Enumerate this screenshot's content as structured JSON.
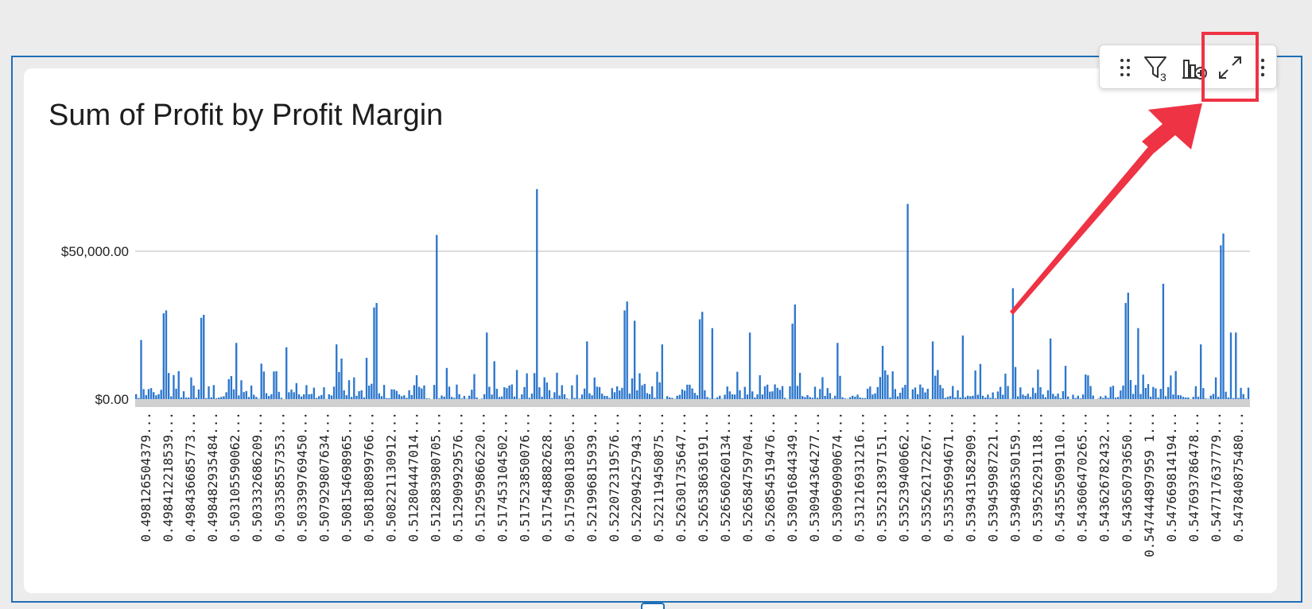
{
  "chart_data": {
    "type": "bar",
    "title": "Sum of Profit by Profit Margin",
    "xlabel": "",
    "ylabel": "",
    "y_ticks": [
      "$0.00",
      "$50,000.00"
    ],
    "ylim": [
      0,
      80000
    ],
    "grid": true,
    "bar_color": "#2d77cc",
    "x_tick_labels": [
      "0.498126504379...",
      "0.498412218539...",
      "0.498436685773...",
      "0.498482935484...",
      "0.503105590062...",
      "0.503332686209...",
      "0.503358557353...",
      "0.503399769450...",
      "0.507929807634...",
      "0.508154698965...",
      "0.508180899766...",
      "0.508221130912...",
      "0.512804447014...",
      "0.512883980705...",
      "0.512909929576...",
      "0.512959866220...",
      "0.517453104502...",
      "0.517523850076...",
      "0.517548882628...",
      "0.517598018305...",
      "0.521996815939...",
      "0.522072319576...",
      "0.522094257943...",
      "0.522119450875...",
      "0.526301735647...",
      "0.526538636191...",
      "0.526560260134...",
      "0.526584759704...",
      "0.526854519476...",
      "0.530916844349...",
      "0.530944364277...",
      "0.530969090674...",
      "0.531216931216...",
      "0.535218397151...",
      "0.535239400662...",
      "0.535262172267...",
      "0.535356994671...",
      "0.539431582909...",
      "0.539459987221...",
      "0.539486350159...",
      "0.539526291118...",
      "0.543555099110...",
      "0.543606470265...",
      "0.543626782432...",
      "0.543650793650...",
      "0.547444897959 1...",
      "0.547669814194...",
      "0.547693786478...",
      "0.547717637779...",
      "0.547840875480..."
    ],
    "peaks": [
      {
        "index": 2,
        "value": 20000
      },
      {
        "index": 11,
        "value": 29000
      },
      {
        "index": 12,
        "value": 30000
      },
      {
        "index": 26,
        "value": 27500
      },
      {
        "index": 27,
        "value": 28500
      },
      {
        "index": 40,
        "value": 19000
      },
      {
        "index": 50,
        "value": 12000
      },
      {
        "index": 60,
        "value": 17500
      },
      {
        "index": 80,
        "value": 18500
      },
      {
        "index": 95,
        "value": 31000
      },
      {
        "index": 96,
        "value": 32500
      },
      {
        "index": 120,
        "value": 55500
      },
      {
        "index": 140,
        "value": 22500
      },
      {
        "index": 160,
        "value": 71000
      },
      {
        "index": 180,
        "value": 19500
      },
      {
        "index": 195,
        "value": 30000
      },
      {
        "index": 196,
        "value": 33000
      },
      {
        "index": 199,
        "value": 26500
      },
      {
        "index": 210,
        "value": 18500
      },
      {
        "index": 225,
        "value": 27000
      },
      {
        "index": 226,
        "value": 29500
      },
      {
        "index": 230,
        "value": 24000
      },
      {
        "index": 245,
        "value": 22500
      },
      {
        "index": 262,
        "value": 25500
      },
      {
        "index": 263,
        "value": 32000
      },
      {
        "index": 280,
        "value": 19000
      },
      {
        "index": 298,
        "value": 18000
      },
      {
        "index": 308,
        "value": 66000
      },
      {
        "index": 318,
        "value": 19500
      },
      {
        "index": 330,
        "value": 21500
      },
      {
        "index": 350,
        "value": 37500
      },
      {
        "index": 365,
        "value": 20500
      },
      {
        "index": 395,
        "value": 32500
      },
      {
        "index": 396,
        "value": 36000
      },
      {
        "index": 400,
        "value": 24000
      },
      {
        "index": 410,
        "value": 39000
      },
      {
        "index": 425,
        "value": 18500
      },
      {
        "index": 433,
        "value": 52000
      },
      {
        "index": 434,
        "value": 56000
      },
      {
        "index": 437,
        "value": 22500
      },
      {
        "index": 439,
        "value": 22500
      }
    ],
    "n_bars": 445
  },
  "toolbar": {
    "filter_count": "3",
    "icons": [
      "drag-handle-icon",
      "filter-icon",
      "add-chart-icon",
      "expand-icon",
      "more-options-icon"
    ]
  },
  "annotation": {
    "highlight_color": "#ee3344"
  }
}
